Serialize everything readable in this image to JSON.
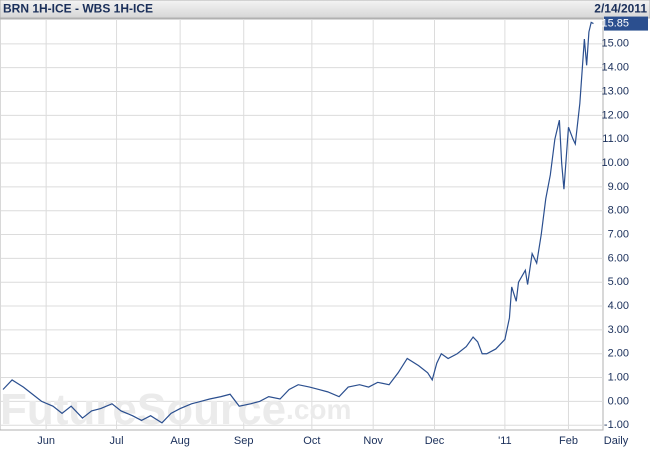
{
  "chart_data": {
    "type": "line",
    "title": "BRN 1H-ICE - WBS 1H-ICE",
    "date": "2/14/2011",
    "frequency": "Daily",
    "watermark": "FutureSource",
    "watermark_suffix": ".com",
    "last_value": 15.85,
    "last_value_label": "15.85",
    "x": [
      0,
      4,
      9,
      13,
      17,
      22,
      26,
      30,
      35,
      39,
      43,
      48,
      52,
      57,
      61,
      65,
      70,
      74,
      78,
      83,
      87,
      91,
      96,
      100,
      104,
      109,
      113,
      117,
      122,
      126,
      130,
      135,
      139,
      143,
      148,
      152,
      157,
      161,
      165,
      170,
      174,
      178,
      183,
      187,
      189,
      191,
      193,
      196,
      200,
      204,
      207,
      209,
      211,
      213,
      217,
      221,
      223,
      224,
      226,
      227,
      230,
      231,
      233,
      235,
      237,
      239,
      241,
      243,
      245,
      246,
      247,
      249,
      251,
      252,
      254,
      256,
      257,
      258,
      259,
      260
    ],
    "series": [
      {
        "name": "BRN 1H-ICE - WBS 1H-ICE",
        "color": "#2b4f8f",
        "values": [
          0.5,
          0.9,
          0.6,
          0.3,
          0.0,
          -0.2,
          -0.5,
          -0.2,
          -0.7,
          -0.4,
          -0.3,
          -0.1,
          -0.4,
          -0.6,
          -0.8,
          -0.6,
          -0.9,
          -0.5,
          -0.3,
          -0.1,
          0.0,
          0.1,
          0.2,
          0.3,
          -0.2,
          -0.1,
          0.0,
          0.2,
          0.1,
          0.5,
          0.7,
          0.6,
          0.5,
          0.4,
          0.2,
          0.6,
          0.7,
          0.6,
          0.8,
          0.7,
          1.2,
          1.8,
          1.5,
          1.2,
          0.9,
          1.6,
          2.0,
          1.8,
          2.0,
          2.3,
          2.7,
          2.5,
          2.0,
          2.0,
          2.2,
          2.6,
          3.5,
          4.8,
          4.2,
          5.0,
          5.5,
          4.9,
          6.2,
          5.8,
          7.0,
          8.5,
          9.5,
          11.0,
          11.8,
          10.0,
          8.9,
          11.5,
          11.0,
          10.8,
          12.5,
          15.2,
          14.1,
          15.5,
          15.9,
          15.85
        ]
      }
    ],
    "xlim": [
      0,
      262
    ],
    "xticks": [
      {
        "value": 19,
        "label": "Jun"
      },
      {
        "value": 50,
        "label": "Jul"
      },
      {
        "value": 78,
        "label": "Aug"
      },
      {
        "value": 106,
        "label": "Sep"
      },
      {
        "value": 136,
        "label": "Oct"
      },
      {
        "value": 163,
        "label": "Nov"
      },
      {
        "value": 190,
        "label": "Dec"
      },
      {
        "value": 221,
        "label": "'11"
      },
      {
        "value": 249,
        "label": "Feb"
      }
    ],
    "ylim": [
      -1.2,
      16
    ],
    "yticks": [
      {
        "value": -1,
        "label": "-1.00"
      },
      {
        "value": 0,
        "label": "0.00"
      },
      {
        "value": 1,
        "label": "1.00"
      },
      {
        "value": 2,
        "label": "2.00"
      },
      {
        "value": 3,
        "label": "3.00"
      },
      {
        "value": 4,
        "label": "4.00"
      },
      {
        "value": 5,
        "label": "5.00"
      },
      {
        "value": 6,
        "label": "6.00"
      },
      {
        "value": 7,
        "label": "7.00"
      },
      {
        "value": 8,
        "label": "8.00"
      },
      {
        "value": 9,
        "label": "9.00"
      },
      {
        "value": 10,
        "label": "10.00"
      },
      {
        "value": 11,
        "label": "11.00"
      },
      {
        "value": 12,
        "label": "12.00"
      },
      {
        "value": 13,
        "label": "13.00"
      },
      {
        "value": 14,
        "label": "14.00"
      },
      {
        "value": 15,
        "label": "15.00"
      }
    ],
    "grid": true
  }
}
